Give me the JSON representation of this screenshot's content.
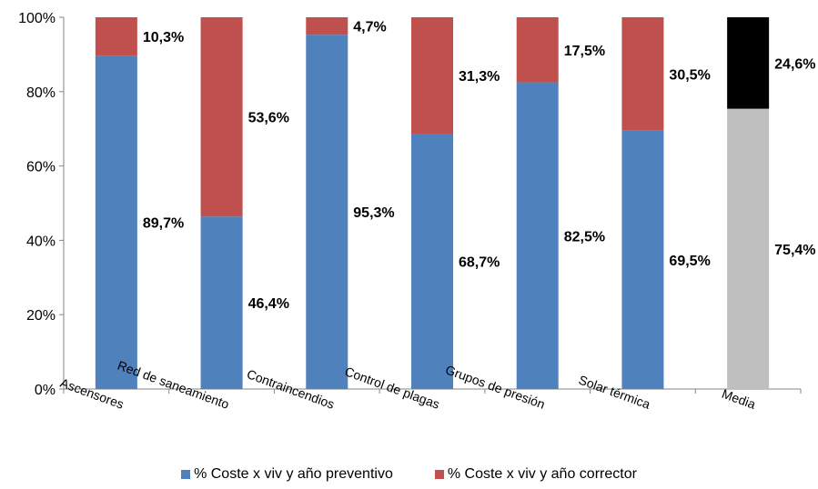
{
  "chart_data": {
    "type": "bar",
    "stacked": true,
    "percent": true,
    "categories": [
      "Ascensores",
      "Red de saneamiento",
      "Contraincendios",
      "Control de plagas",
      "Grupos de presión",
      "Solar térmica",
      "Media"
    ],
    "series": [
      {
        "name": "% Coste x viv y año preventivo",
        "color": "#4F81BD",
        "values": [
          89.7,
          46.4,
          95.3,
          68.7,
          82.5,
          69.5,
          75.4
        ],
        "labels": [
          "89,7%",
          "46,4%",
          "95,3%",
          "68,7%",
          "82,5%",
          "69,5%",
          "75,4%"
        ]
      },
      {
        "name": "% Coste x viv y año corrector",
        "color": "#C0504D",
        "values": [
          10.3,
          53.6,
          4.7,
          31.3,
          17.5,
          30.5,
          24.6
        ],
        "labels": [
          "10,3%",
          "53,6%",
          "4,7%",
          "31,3%",
          "17,5%",
          "30,5%",
          "24,6%"
        ]
      }
    ],
    "highlight": {
      "category": "Media",
      "colors": [
        "#BFBFBF",
        "#000000"
      ]
    },
    "yticks": [
      "0%",
      "20%",
      "40%",
      "60%",
      "80%",
      "100%"
    ],
    "ylim": [
      0,
      100
    ],
    "legend_position": "bottom",
    "grid": false
  }
}
